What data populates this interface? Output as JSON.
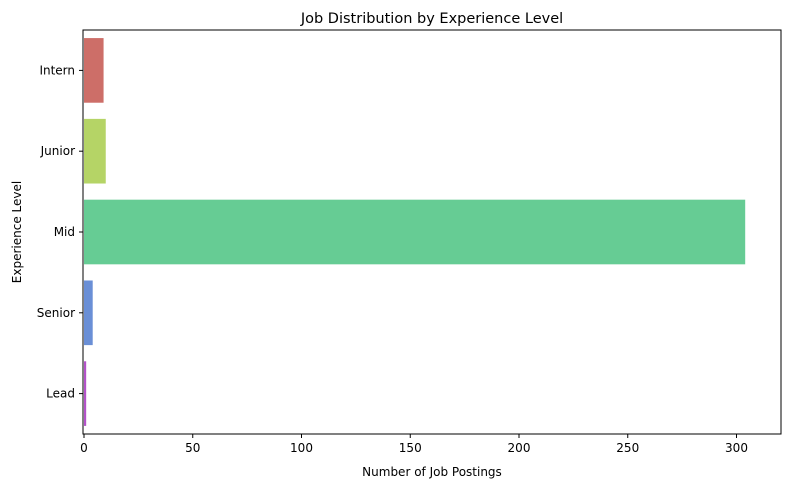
{
  "chart_data": {
    "type": "bar",
    "orientation": "horizontal",
    "title": "Job Distribution by Experience Level",
    "xlabel": "Number of Job Postings",
    "ylabel": "Experience Level",
    "categories": [
      "Intern",
      "Junior",
      "Mid",
      "Senior",
      "Lead"
    ],
    "values": [
      9,
      10,
      304,
      4,
      1
    ],
    "colors": [
      "#cd6e68",
      "#b5d466",
      "#66cc94",
      "#6a8fd6",
      "#b352c9"
    ],
    "xlim": [
      0,
      320
    ],
    "xticks": [
      0,
      50,
      100,
      150,
      200,
      250,
      300
    ],
    "grid": false,
    "legend": "none"
  }
}
